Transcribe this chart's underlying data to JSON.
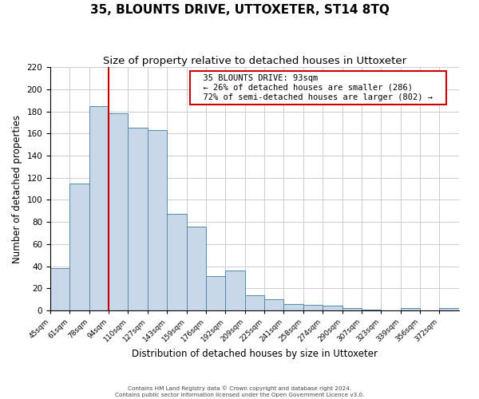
{
  "title": "35, BLOUNTS DRIVE, UTTOXETER, ST14 8TQ",
  "subtitle": "Size of property relative to detached houses in Uttoxeter",
  "xlabel": "Distribution of detached houses by size in Uttoxeter",
  "ylabel": "Number of detached properties",
  "bin_labels": [
    "45sqm",
    "61sqm",
    "78sqm",
    "94sqm",
    "110sqm",
    "127sqm",
    "143sqm",
    "159sqm",
    "176sqm",
    "192sqm",
    "209sqm",
    "225sqm",
    "241sqm",
    "258sqm",
    "274sqm",
    "290sqm",
    "307sqm",
    "323sqm",
    "339sqm",
    "356sqm",
    "372sqm"
  ],
  "bar_heights": [
    38,
    115,
    185,
    178,
    165,
    163,
    87,
    76,
    31,
    36,
    14,
    10,
    6,
    5,
    4,
    2,
    1,
    0,
    2,
    0,
    2
  ],
  "bar_color": "#c8d8e8",
  "bar_edge_color": "#5588aa",
  "vline_color": "#cc0000",
  "ylim": [
    0,
    220
  ],
  "yticks": [
    0,
    20,
    40,
    60,
    80,
    100,
    120,
    140,
    160,
    180,
    200,
    220
  ],
  "annotation_title": "35 BLOUNTS DRIVE: 93sqm",
  "annotation_line1": "← 26% of detached houses are smaller (286)",
  "annotation_line2": "72% of semi-detached houses are larger (802) →",
  "annotation_box_color": "#ffffff",
  "annotation_box_edge": "#cc0000",
  "footer_line1": "Contains HM Land Registry data © Crown copyright and database right 2024.",
  "footer_line2": "Contains public sector information licensed under the Open Government Licence v3.0.",
  "background_color": "#ffffff",
  "grid_color": "#cccccc",
  "title_fontsize": 11,
  "subtitle_fontsize": 9.5,
  "axis_label_fontsize": 8.5
}
